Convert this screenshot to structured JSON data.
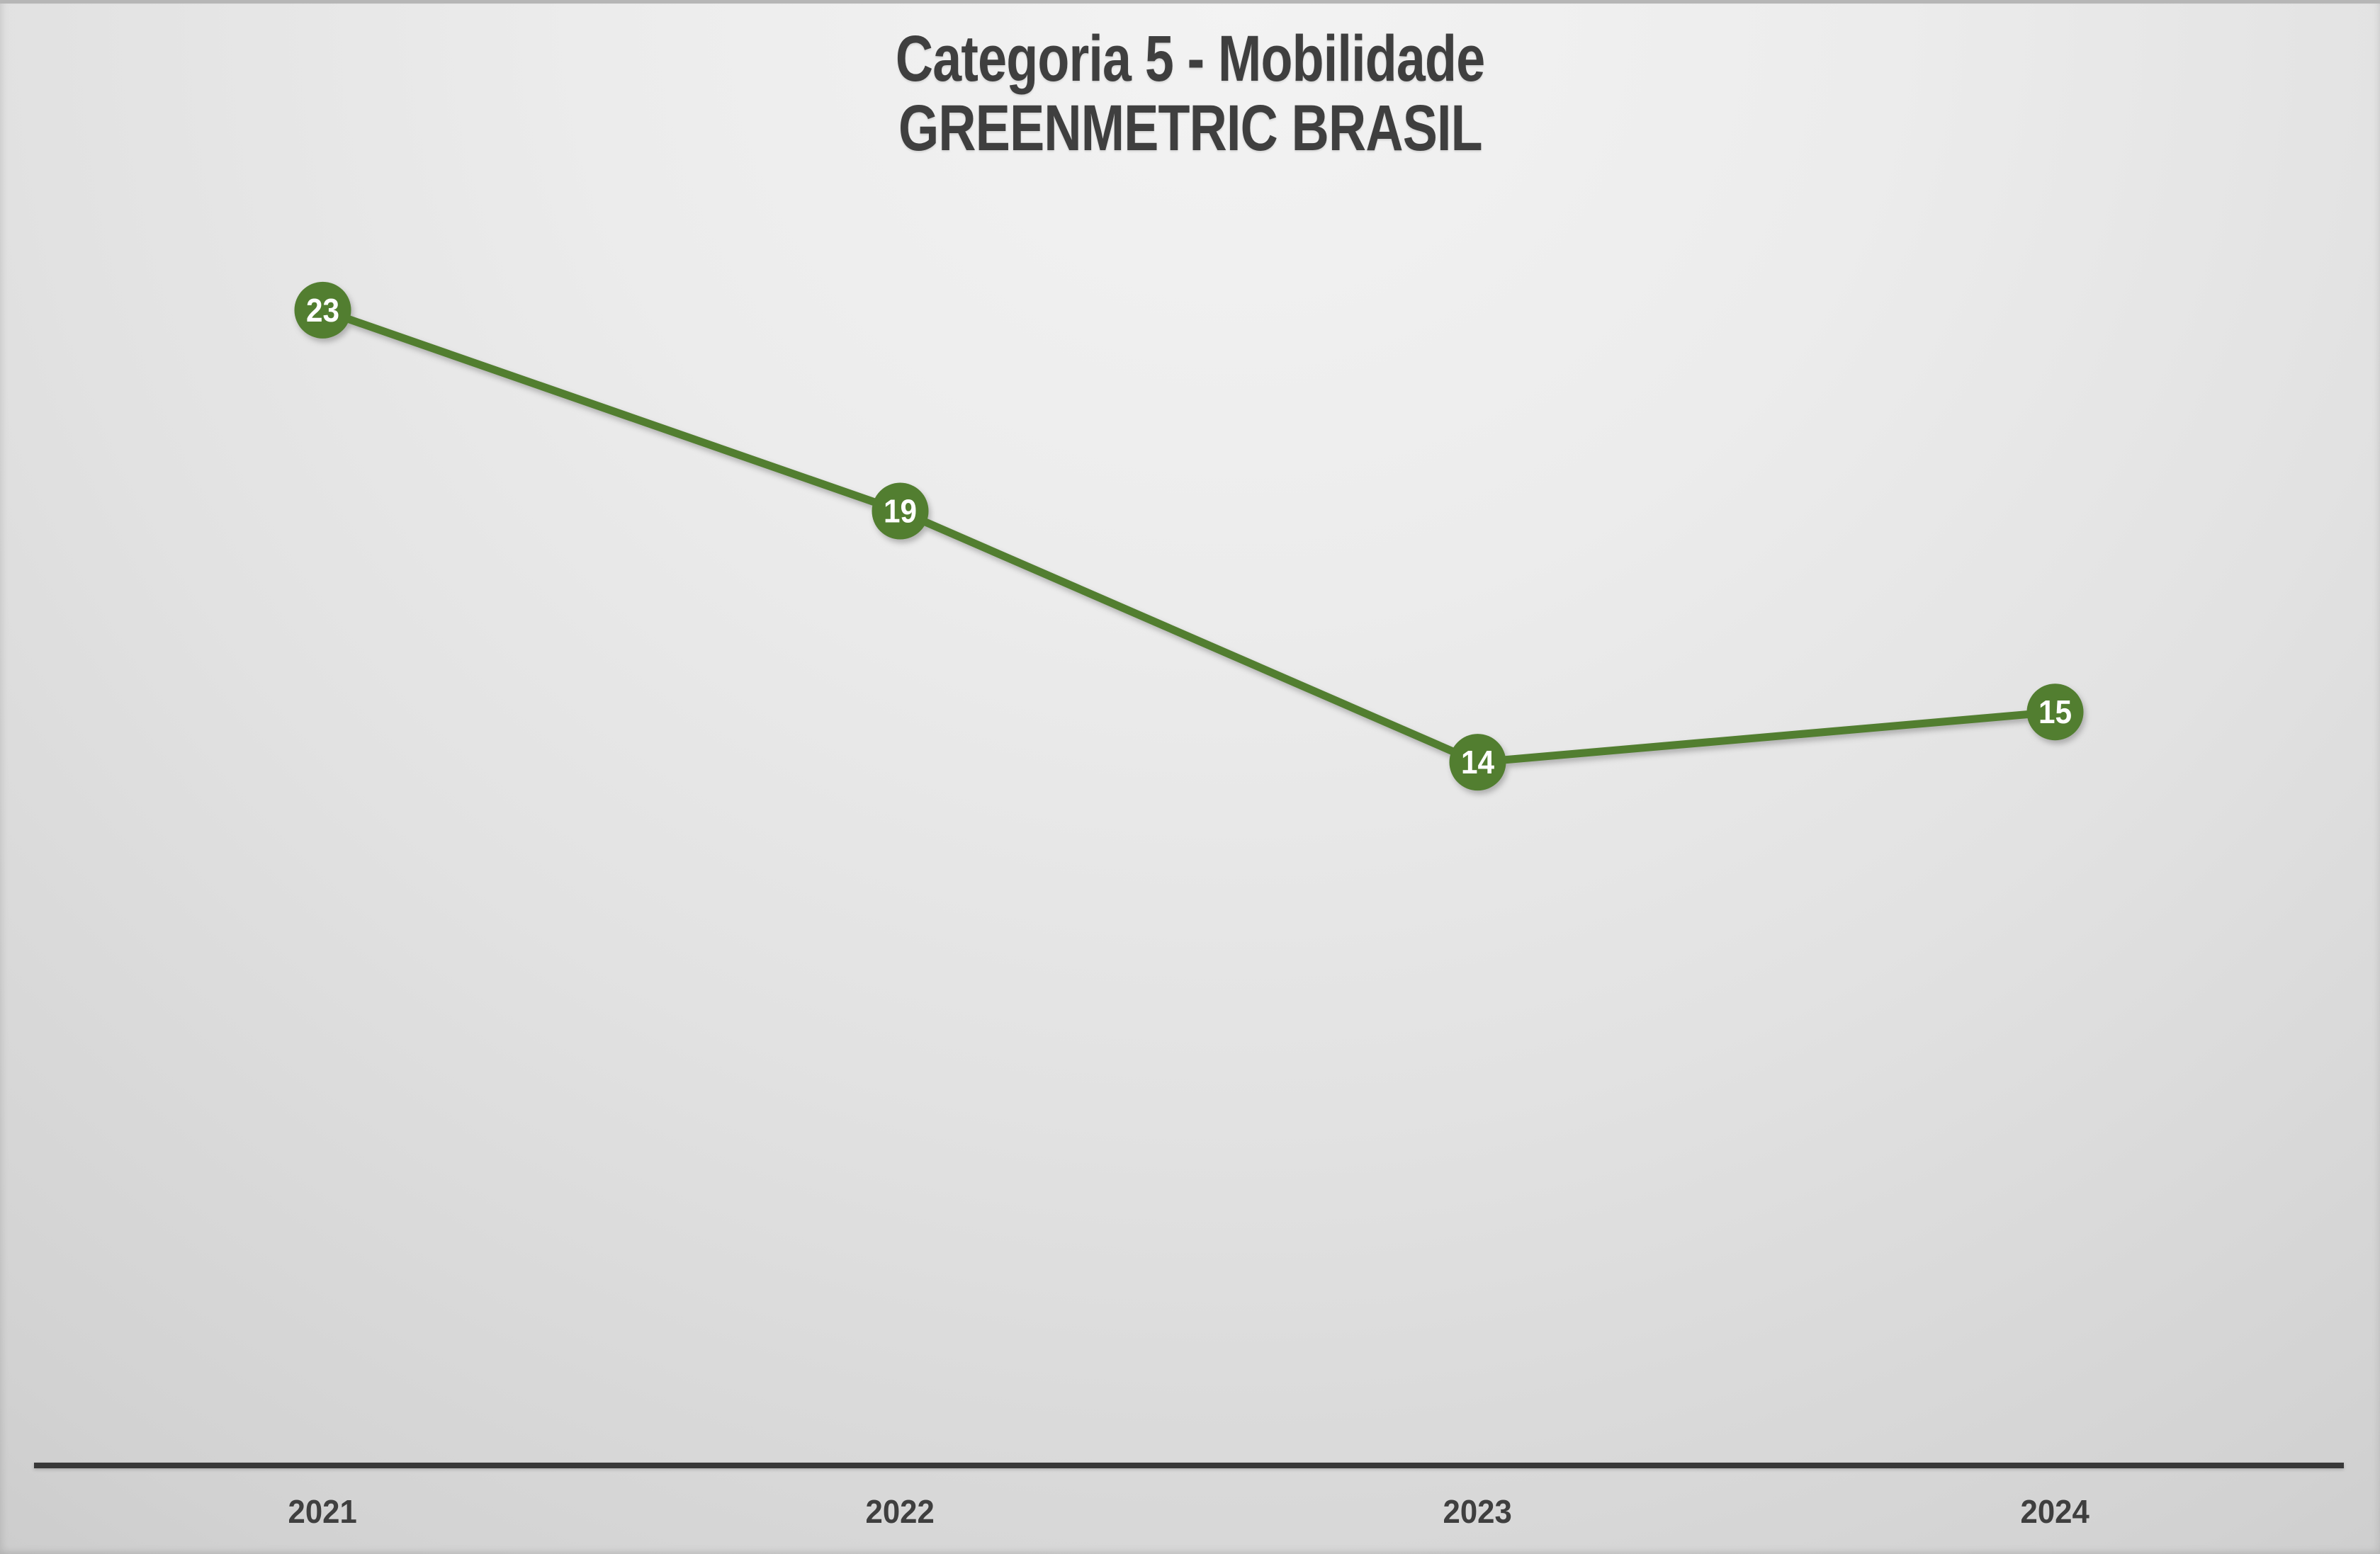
{
  "title": {
    "line1": "Categoria 5 - Mobilidade",
    "line2": "GREENMETRIC BRASIL"
  },
  "colors": {
    "title_text": "#3f3f3f",
    "top_strip": "#b6b6b6",
    "background_highlight": "#f3f3f3",
    "background_base": "#c2c2c2"
  },
  "chart_data": {
    "type": "line",
    "title": "Categoria 5 - Mobilidade GREENMETRIC BRASIL",
    "categories": [
      "2021",
      "2022",
      "2023",
      "2024"
    ],
    "values": [
      23,
      19,
      14,
      15
    ],
    "data_labels": [
      "23",
      "19",
      "14",
      "15"
    ],
    "data_labels_visible": true,
    "xlabel": "",
    "ylabel": "",
    "ylim": [
      0,
      25
    ],
    "grid": false,
    "legend": false,
    "yaxis_visible": false,
    "colors": {
      "series": "#527e30",
      "marker_fill": "#527e30",
      "marker_text": "#ffffff",
      "axis": "#383838",
      "tick_label_text": "#3f3f3f"
    }
  }
}
